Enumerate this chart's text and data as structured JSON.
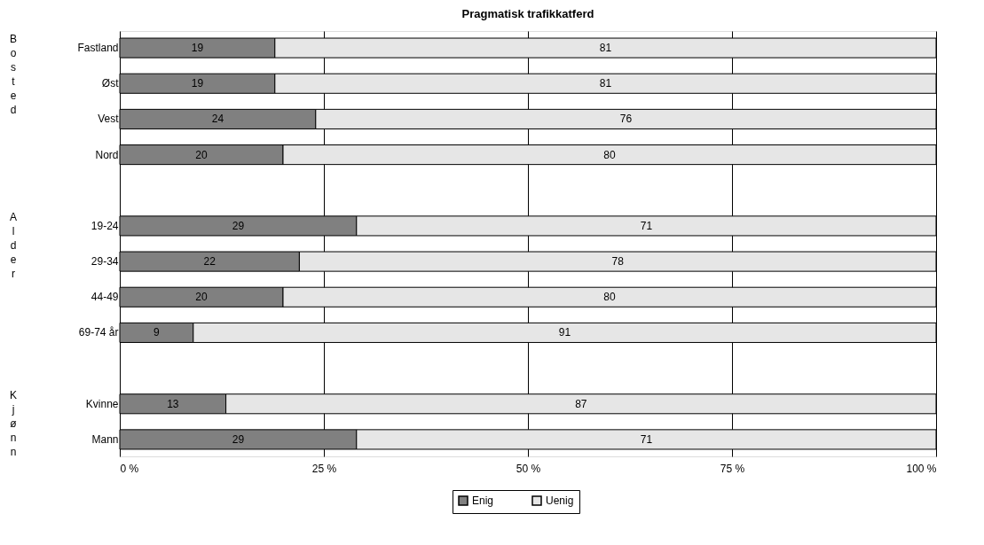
{
  "chart_data": {
    "type": "bar",
    "orientation": "horizontal",
    "stacked": true,
    "title": "Pragmatisk trafikkatferd",
    "categories": [
      "Fastland",
      "Øst",
      "Vest",
      "Nord",
      null,
      "19-24",
      "29-34",
      "44-49",
      "69-74 år",
      null,
      "Kvinne",
      "Mann"
    ],
    "series": [
      {
        "name": "Enig",
        "color": "#808080",
        "values": [
          19,
          19,
          24,
          20,
          null,
          29,
          22,
          20,
          9,
          null,
          13,
          29
        ]
      },
      {
        "name": "Uenig",
        "color": "#e6e6e6",
        "values": [
          81,
          81,
          76,
          80,
          null,
          71,
          78,
          80,
          91,
          null,
          87,
          71
        ]
      }
    ],
    "xlim": [
      0,
      100
    ],
    "xticks": [
      {
        "value": 0,
        "label": "0 %"
      },
      {
        "value": 25,
        "label": "25 %"
      },
      {
        "value": 50,
        "label": "50 %"
      },
      {
        "value": 75,
        "label": "75 %"
      },
      {
        "value": 100,
        "label": "100 %"
      }
    ],
    "grid": "x",
    "legend": "bottom",
    "data_labels": true,
    "annotations": [
      "Bosted",
      "Alder",
      "Kjønn"
    ]
  }
}
